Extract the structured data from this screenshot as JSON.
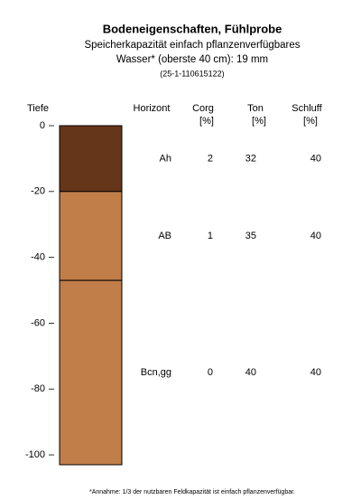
{
  "chart_data": {
    "type": "soil-profile",
    "title": "Bodeneigenschaften, Fühlprobe",
    "subtitle": [
      "Speicherkapazität einfach pflanzenverfügbares",
      "Wasser* (oberste 40 cm): 19 mm"
    ],
    "sample_id": "(25-1-110615122)",
    "y_label": "Tiefe",
    "columns": [
      {
        "name": "Horizont"
      },
      {
        "name": "Corg",
        "unit": "[%]"
      },
      {
        "name": "Ton",
        "unit": "[%]"
      },
      {
        "name": "Schluff",
        "unit": "[%]"
      }
    ],
    "ylim": [
      -103,
      0
    ],
    "yticks": [
      0,
      -20,
      -40,
      -60,
      -80,
      -100
    ],
    "layers": [
      {
        "top": 0,
        "bottom": -20,
        "color": "#66361a",
        "horizon": "Ah",
        "corg": 2,
        "ton": 32,
        "schluff": 40
      },
      {
        "top": -20,
        "bottom": -47,
        "color": "#c17e49",
        "horizon": "AB",
        "corg": 1,
        "ton": 35,
        "schluff": 40
      },
      {
        "top": -47,
        "bottom": -103,
        "color": "#c17e49",
        "horizon": "Bcn,gg",
        "corg": 0,
        "ton": 40,
        "schluff": 40
      }
    ],
    "footnote": "*Annahme: 1/3 der nutzbaren Feldkapazität ist einfach pflanzenverfügbar."
  }
}
